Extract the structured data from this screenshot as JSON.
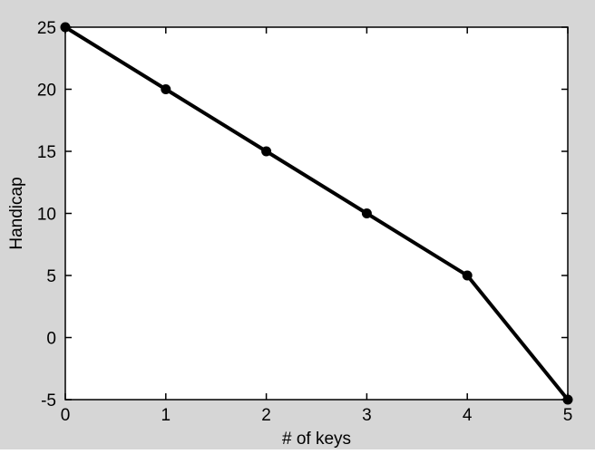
{
  "chart_data": {
    "type": "line",
    "x": [
      0,
      1,
      2,
      3,
      4,
      5
    ],
    "y": [
      25,
      20,
      15,
      10,
      5,
      -5
    ],
    "title": "",
    "xlabel": "# of keys",
    "ylabel": "Handicap",
    "xlim": [
      0,
      5
    ],
    "ylim": [
      -5,
      25
    ],
    "xticks": [
      0,
      1,
      2,
      3,
      4,
      5
    ],
    "yticks": [
      -5,
      0,
      5,
      10,
      15,
      20,
      25
    ],
    "grid": "off",
    "legend": "none",
    "box": "on",
    "marker": "filled-circle",
    "line_color": "#000000",
    "marker_color": "#000000",
    "figure_bg": "#d6d6d6",
    "axes_bg": "#ffffff",
    "axis_color": "#000000"
  }
}
